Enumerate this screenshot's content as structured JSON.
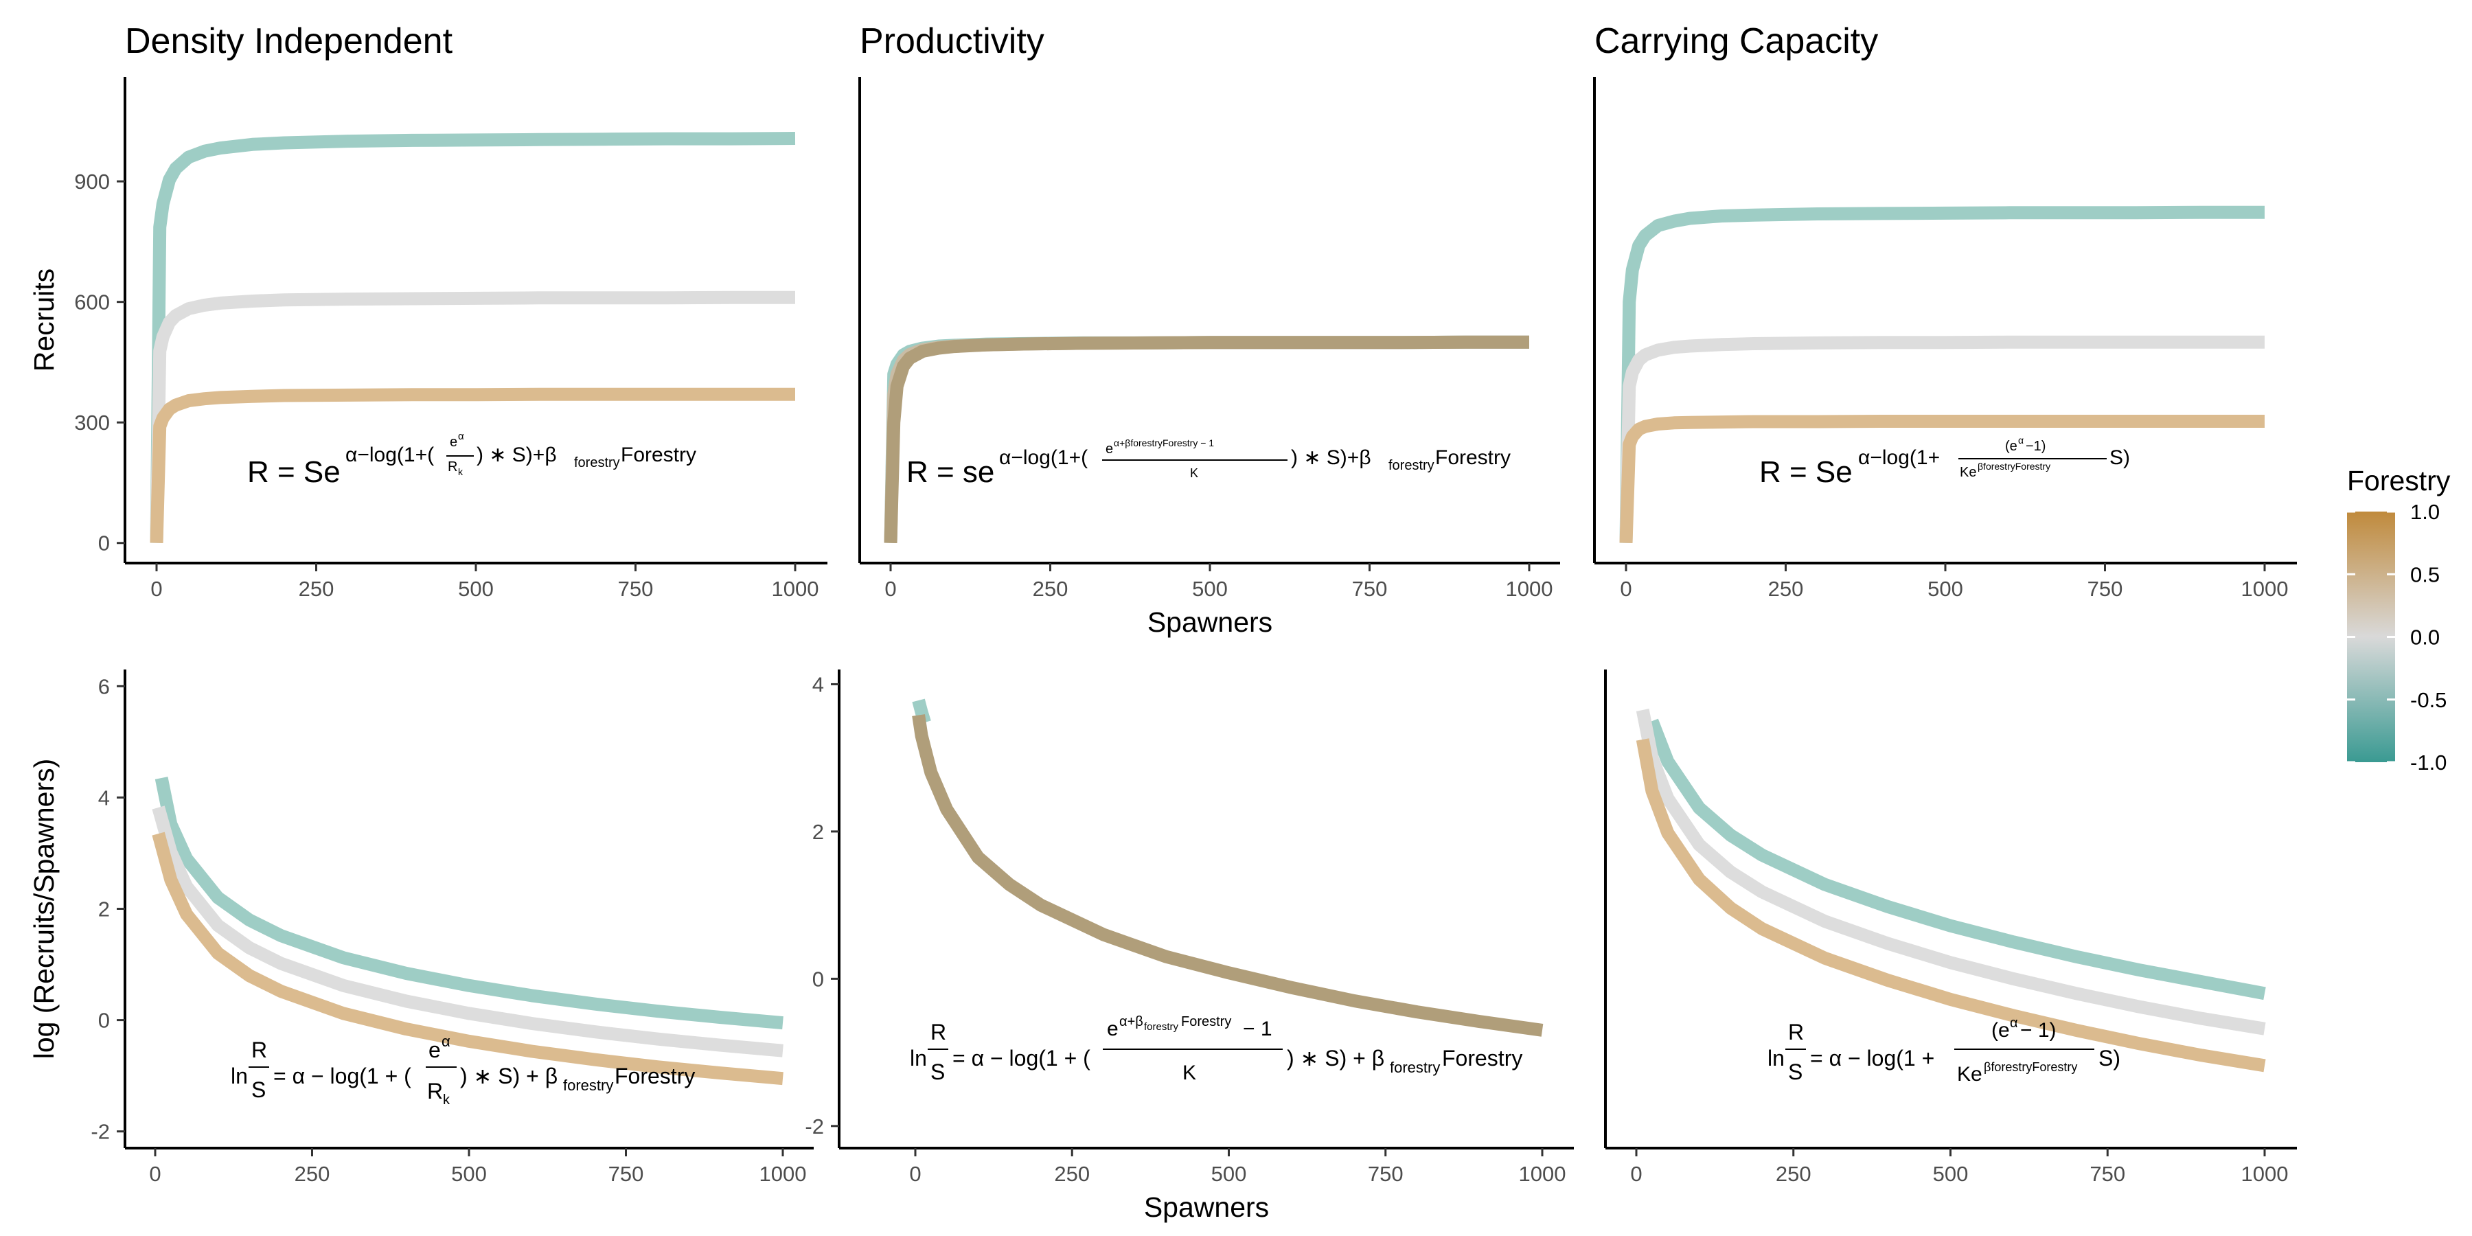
{
  "chart_data": [
    {
      "type": "line",
      "panel": "top-left",
      "title": "Density Independent",
      "xlabel": "",
      "ylabel": "Recruits",
      "xlim": [
        0,
        1000
      ],
      "ylim": [
        -50,
        1160
      ],
      "xticks": [
        0,
        250,
        500,
        750,
        1000
      ],
      "yticks": [
        0,
        300,
        600,
        900
      ],
      "equation": "R = Se^{α−log(1+(e^α/R_k) * S)+β_forestry Forestry}",
      "series": [
        {
          "forestry": -1,
          "color": "#9ecdc5",
          "x": [
            0,
            5,
            10,
            20,
            30,
            50,
            75,
            100,
            150,
            200,
            300,
            400,
            500,
            600,
            700,
            800,
            900,
            1000
          ],
          "y": [
            0,
            786,
            844,
            904,
            932,
            960,
            975,
            983,
            992,
            996,
            1000,
            1002,
            1003,
            1004,
            1005,
            1006,
            1006,
            1007
          ]
        },
        {
          "forestry": 0,
          "color": "#dddddd",
          "x": [
            0,
            5,
            10,
            20,
            30,
            50,
            75,
            100,
            150,
            200,
            300,
            400,
            500,
            600,
            700,
            800,
            900,
            1000
          ],
          "y": [
            0,
            478,
            513,
            549,
            566,
            583,
            592,
            597,
            602,
            605,
            607,
            608,
            609,
            610,
            610,
            610,
            611,
            611
          ]
        },
        {
          "forestry": 1,
          "color": "#dbbb8f",
          "x": [
            0,
            5,
            10,
            20,
            30,
            50,
            75,
            100,
            150,
            200,
            300,
            400,
            500,
            600,
            700,
            800,
            900,
            1000
          ],
          "y": [
            0,
            290,
            311,
            333,
            343,
            354,
            359,
            362,
            365,
            367,
            368,
            369,
            369,
            370,
            370,
            370,
            370,
            370
          ]
        }
      ]
    },
    {
      "type": "line",
      "panel": "top-middle",
      "title": "Productivity",
      "xlabel": "Spawners",
      "ylabel": "",
      "xlim": [
        0,
        1000
      ],
      "ylim": [
        -50,
        1160
      ],
      "xticks": [
        0,
        250,
        500,
        750,
        1000
      ],
      "yticks": [],
      "equation": "R = se^{α−log(1+((e^{α+β_forestry Forestry}−1)/K) * S)+β_forestry Forestry}",
      "series": [
        {
          "forestry": -1,
          "color": "#9ecdc5",
          "x": [
            0,
            5,
            10,
            20,
            30,
            50,
            75,
            100,
            150,
            200,
            300,
            400,
            500,
            600,
            700,
            800,
            900,
            1000
          ],
          "y": [
            0,
            420,
            445,
            468,
            477,
            485,
            490,
            492,
            495,
            496,
            498,
            498,
            499,
            499,
            499,
            499,
            500,
            500
          ]
        },
        {
          "forestry": 0,
          "color": "#c9bca5",
          "x": [
            0,
            5,
            10,
            20,
            30,
            50,
            75,
            100,
            150,
            200,
            300,
            400,
            500,
            600,
            700,
            800,
            900,
            1000
          ],
          "y": [
            0,
            370,
            420,
            455,
            469,
            481,
            487,
            490,
            493,
            495,
            497,
            498,
            499,
            499,
            499,
            499,
            500,
            500
          ]
        },
        {
          "forestry": 1,
          "color": "#b09e7a",
          "x": [
            0,
            5,
            10,
            20,
            30,
            50,
            75,
            100,
            150,
            200,
            300,
            400,
            500,
            600,
            700,
            800,
            900,
            1000
          ],
          "y": [
            0,
            300,
            390,
            440,
            460,
            477,
            485,
            489,
            493,
            495,
            497,
            498,
            499,
            499,
            499,
            499,
            500,
            500
          ]
        }
      ]
    },
    {
      "type": "line",
      "panel": "top-right",
      "title": "Carrying Capacity",
      "xlabel": "",
      "ylabel": "",
      "xlim": [
        0,
        1000
      ],
      "ylim": [
        -50,
        1160
      ],
      "xticks": [
        0,
        250,
        500,
        750,
        1000
      ],
      "yticks": [],
      "equation": "R = Se^{α−log(1+((e^α−1)/(Ke^{β_forestry Forestry})) S)}",
      "series": [
        {
          "forestry": -1,
          "color": "#9ecdc5",
          "x": [
            0,
            5,
            10,
            20,
            30,
            50,
            75,
            100,
            150,
            200,
            300,
            400,
            500,
            600,
            700,
            800,
            900,
            1000
          ],
          "y": [
            0,
            600,
            680,
            740,
            765,
            790,
            801,
            808,
            814,
            816,
            819,
            820,
            821,
            822,
            822,
            822,
            823,
            823
          ]
        },
        {
          "forestry": 0,
          "color": "#dddddd",
          "x": [
            0,
            5,
            10,
            20,
            30,
            50,
            75,
            100,
            150,
            200,
            300,
            400,
            500,
            600,
            700,
            800,
            900,
            1000
          ],
          "y": [
            0,
            390,
            425,
            455,
            468,
            480,
            487,
            490,
            494,
            496,
            498,
            499,
            499,
            500,
            500,
            500,
            500,
            500
          ]
        },
        {
          "forestry": 1,
          "color": "#dbbb8f",
          "x": [
            0,
            5,
            10,
            20,
            30,
            50,
            75,
            100,
            150,
            200,
            300,
            400,
            500,
            600,
            700,
            800,
            900,
            1000
          ],
          "y": [
            0,
            245,
            265,
            283,
            290,
            296,
            299,
            300,
            301,
            302,
            302,
            303,
            303,
            303,
            303,
            303,
            303,
            303
          ]
        }
      ]
    },
    {
      "type": "line",
      "panel": "bottom-left",
      "title": "",
      "xlabel": "",
      "ylabel": "log (Recruits/Spawners)",
      "xlim": [
        0,
        1000
      ],
      "ylim": [
        -2.3,
        6.3
      ],
      "xticks": [
        0,
        250,
        500,
        750,
        1000
      ],
      "yticks": [
        -2,
        0,
        2,
        4,
        6
      ],
      "equation": "ln(R/S) = α − log(1 + (e^α/R_k) * S) + β_forestry Forestry",
      "series": [
        {
          "forestry": -1,
          "color": "#9ecdc5",
          "x": [
            10,
            25,
            50,
            100,
            150,
            200,
            300,
            400,
            500,
            600,
            700,
            800,
            900,
            1000
          ],
          "y": [
            4.35,
            3.52,
            2.9,
            2.2,
            1.8,
            1.52,
            1.12,
            0.84,
            0.62,
            0.44,
            0.29,
            0.16,
            0.05,
            -0.05
          ]
        },
        {
          "forestry": 0,
          "color": "#dddddd",
          "x": [
            5,
            25,
            50,
            100,
            150,
            200,
            300,
            400,
            500,
            600,
            700,
            800,
            900,
            1000
          ],
          "y": [
            3.82,
            3.02,
            2.4,
            1.7,
            1.3,
            1.02,
            0.62,
            0.34,
            0.12,
            -0.06,
            -0.21,
            -0.34,
            -0.45,
            -0.55
          ]
        },
        {
          "forestry": 1,
          "color": "#dbbb8f",
          "x": [
            5,
            25,
            50,
            100,
            150,
            200,
            300,
            400,
            500,
            600,
            700,
            800,
            900,
            1000
          ],
          "y": [
            3.35,
            2.52,
            1.9,
            1.2,
            0.8,
            0.52,
            0.12,
            -0.16,
            -0.38,
            -0.56,
            -0.71,
            -0.84,
            -0.95,
            -1.05
          ]
        }
      ]
    },
    {
      "type": "line",
      "panel": "bottom-middle",
      "title": "",
      "xlabel": "Spawners",
      "ylabel": "",
      "xlim": [
        0,
        1000
      ],
      "ylim": [
        -2.3,
        4.2
      ],
      "xticks": [
        0,
        250,
        500,
        750,
        1000
      ],
      "yticks": [
        -2,
        0,
        2,
        4
      ],
      "equation": "ln(R/S) = α − log(1 + ((e^{α+β_forestry Forestry} − 1)/K) * S) + β_forestry Forestry",
      "series": [
        {
          "forestry": -1,
          "color": "#9ecdc5",
          "x": [
            5,
            10,
            15
          ],
          "y": [
            3.78,
            3.62,
            3.48
          ]
        },
        {
          "forestry": 1,
          "color": "#b09e7a",
          "x": [
            5,
            10,
            25,
            50,
            100,
            150,
            200,
            300,
            400,
            500,
            600,
            700,
            800,
            900,
            1000
          ],
          "y": [
            3.58,
            3.3,
            2.8,
            2.3,
            1.65,
            1.28,
            1.0,
            0.6,
            0.3,
            0.08,
            -0.12,
            -0.3,
            -0.45,
            -0.58,
            -0.7
          ]
        }
      ]
    },
    {
      "type": "line",
      "panel": "bottom-right",
      "title": "",
      "xlabel": "",
      "ylabel": "",
      "xlim": [
        0,
        1000
      ],
      "ylim": [
        -2.3,
        4.2
      ],
      "xticks": [
        0,
        250,
        500,
        750,
        1000
      ],
      "yticks": [],
      "equation": "ln(R/S) = α − log(1 + ((e^α − 1)/(Ke^{β_forestry Forestry})) S)",
      "series": [
        {
          "forestry": -1,
          "color": "#9ecdc5",
          "x": [
            25,
            50,
            100,
            150,
            200,
            300,
            400,
            500,
            600,
            700,
            800,
            900,
            1000
          ],
          "y": [
            3.5,
            2.95,
            2.32,
            1.95,
            1.68,
            1.28,
            0.98,
            0.72,
            0.5,
            0.3,
            0.12,
            -0.04,
            -0.2
          ]
        },
        {
          "forestry": 0,
          "color": "#dddddd",
          "x": [
            10,
            25,
            50,
            100,
            150,
            200,
            300,
            400,
            500,
            600,
            700,
            800,
            900,
            1000
          ],
          "y": [
            3.65,
            3.0,
            2.45,
            1.82,
            1.45,
            1.18,
            0.78,
            0.48,
            0.22,
            0.0,
            -0.2,
            -0.38,
            -0.54,
            -0.68
          ]
        },
        {
          "forestry": 1,
          "color": "#dbbb8f",
          "x": [
            10,
            25,
            50,
            100,
            150,
            200,
            300,
            400,
            500,
            600,
            700,
            800,
            900,
            1000
          ],
          "y": [
            3.25,
            2.55,
            1.98,
            1.35,
            0.96,
            0.68,
            0.28,
            -0.02,
            -0.28,
            -0.5,
            -0.7,
            -0.88,
            -1.04,
            -1.18
          ]
        }
      ]
    }
  ],
  "legend": {
    "title": "Forestry",
    "placement": "right",
    "range": [
      -1,
      1
    ],
    "ticks": [
      "1.0",
      "0.5",
      "0.0",
      "-0.5",
      "-1.0"
    ],
    "colors": {
      "low": "#3a9a92",
      "mid": "#d9d9d9",
      "high": "#c08a3c"
    }
  }
}
